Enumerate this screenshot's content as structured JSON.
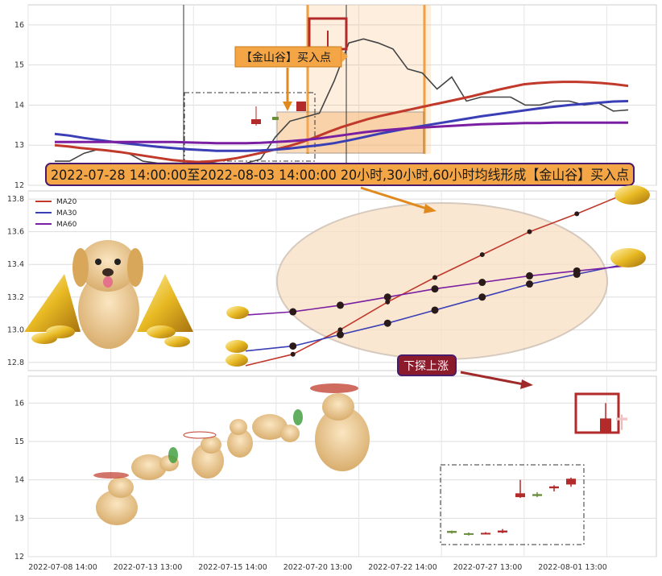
{
  "chart_data": [
    {
      "type": "line",
      "panel": "top",
      "ylim": [
        12,
        16.5
      ],
      "yticks": [
        "12",
        "13",
        "14",
        "15",
        "16"
      ],
      "grid": true,
      "series": [
        {
          "name": "",
          "color": "#444444",
          "values": [
            12.6,
            12.6,
            12.8,
            12.9,
            12.85,
            12.8,
            12.6,
            12.55,
            12.55,
            12.55,
            12.6,
            12.55,
            12.5,
            12.55,
            12.65,
            13.2,
            13.6,
            13.7,
            13.8,
            14.6,
            15.55,
            15.65,
            15.55,
            15.4,
            14.9,
            14.8,
            14.4,
            14.7,
            14.1,
            14.2,
            14.2,
            14.2,
            14.0,
            14.0,
            14.1,
            14.1,
            14.0,
            14.05,
            13.85,
            13.88
          ]
        },
        {
          "name": "",
          "color": "#c0392b",
          "values": [
            13.0,
            12.97,
            12.93,
            12.9,
            12.87,
            12.83,
            12.78,
            12.73,
            12.68,
            12.63,
            12.6,
            12.58,
            12.6,
            12.63,
            12.68,
            12.75,
            12.82,
            12.9,
            12.98,
            13.08,
            13.2,
            13.33,
            13.45,
            13.55,
            13.65,
            13.73,
            13.8,
            13.87,
            13.94,
            14.01,
            14.08,
            14.15,
            14.22,
            14.3,
            14.38,
            14.45,
            14.52,
            14.55,
            14.57,
            14.58,
            14.58,
            14.57,
            14.55,
            14.52,
            14.48
          ]
        },
        {
          "name": "",
          "color": "#3b3fb5",
          "values": [
            13.28,
            13.24,
            13.18,
            13.13,
            13.08,
            13.04,
            13.0,
            12.96,
            12.93,
            12.9,
            12.88,
            12.86,
            12.86,
            12.86,
            12.87,
            12.89,
            12.92,
            12.96,
            13.0,
            13.05,
            13.12,
            13.2,
            13.28,
            13.35,
            13.42,
            13.48,
            13.54,
            13.6,
            13.66,
            13.72,
            13.77,
            13.82,
            13.87,
            13.92,
            13.96,
            14.0,
            14.03,
            14.06,
            14.09,
            14.1
          ]
        },
        {
          "name": "",
          "color": "#7b1fa2",
          "values": [
            13.08,
            13.08,
            13.08,
            13.08,
            13.08,
            13.08,
            13.08,
            13.08,
            13.08,
            13.07,
            13.06,
            13.05,
            13.05,
            13.05,
            13.06,
            13.08,
            13.1,
            13.13,
            13.17,
            13.22,
            13.27,
            13.32,
            13.36,
            13.39,
            13.42,
            13.44,
            13.46,
            13.48,
            13.5,
            13.52,
            13.53,
            13.54,
            13.55,
            13.55,
            13.56,
            13.56,
            13.56,
            13.56,
            13.56,
            13.56
          ]
        }
      ]
    },
    {
      "type": "line",
      "panel": "middle",
      "ylim": [
        12.75,
        13.85
      ],
      "yticks": [
        "12.8",
        "13.0",
        "13.2",
        "13.4",
        "13.6",
        "13.8"
      ],
      "grid": true,
      "legend_position": "top-left",
      "series": [
        {
          "name": "MA20",
          "color": "#c0392b",
          "values": [
            12.78,
            12.85,
            13.0,
            13.17,
            13.32,
            13.46,
            13.6,
            13.71,
            13.83
          ]
        },
        {
          "name": "MA30",
          "color": "#3b3fb5",
          "values": [
            12.87,
            12.9,
            12.97,
            13.04,
            13.12,
            13.2,
            13.28,
            13.34,
            13.4
          ]
        },
        {
          "name": "MA60",
          "color": "#7b1fa2",
          "values": [
            13.09,
            13.11,
            13.15,
            13.2,
            13.25,
            13.29,
            13.33,
            13.36,
            13.39
          ]
        }
      ]
    },
    {
      "type": "candlestick",
      "panel": "bottom",
      "ylim": [
        12,
        16.7
      ],
      "yticks": [
        "12",
        "13",
        "14",
        "15",
        "16"
      ],
      "grid": true,
      "x_tick_labels": [
        "2022-07-08 14:00",
        "2022-07-13 13:00",
        "2022-07-15 14:00",
        "2022-07-20 13:00",
        "2022-07-22 14:00",
        "2022-07-27 13:00",
        "2022-08-01 13:00"
      ],
      "candles": [
        {
          "open": 12.62,
          "close": 12.67,
          "high": 12.68,
          "low": 12.6
        },
        {
          "open": 12.58,
          "close": 12.61,
          "high": 12.63,
          "low": 12.55
        },
        {
          "open": 12.6,
          "close": 12.62,
          "high": 12.64,
          "low": 12.58
        },
        {
          "open": 12.63,
          "close": 12.68,
          "high": 12.72,
          "low": 12.61
        },
        {
          "open": 13.55,
          "close": 13.65,
          "high": 14.0,
          "low": 13.53
        },
        {
          "open": 13.58,
          "close": 13.63,
          "high": 13.68,
          "low": 13.55
        },
        {
          "open": 13.78,
          "close": 13.83,
          "high": 13.86,
          "low": 13.7
        },
        {
          "open": 13.88,
          "close": 14.03,
          "high": 14.06,
          "low": 13.82
        },
        {
          "open": 15.25,
          "close": 15.6,
          "high": 16.0,
          "low": 15.2
        },
        {
          "open": 15.55,
          "close": 15.62,
          "high": 15.7,
          "low": 15.3
        }
      ]
    }
  ],
  "annotations": {
    "buy_point_label": "【金山谷】买入点",
    "banner_text": "2022-07-28 14:00:00至2022-08-03 14:00:00 20小时,30小时,60小时均线形成【金山谷】买入点",
    "dip_rise_label": "下探上涨"
  },
  "colors": {
    "highlight_band": "#f6b26b",
    "banner_bg": "#f4a546",
    "banner_border": "#4a1a6b",
    "tag_bg": "#8b1a2b",
    "candle_up": "#b22a2a",
    "candle_down": "#6b8e3c",
    "ellipse_fill": "#f9e0c4"
  },
  "icons": [
    "gold-ingot-icon",
    "gold-pyramid-icon",
    "puppy-mascot-icon",
    "flying-puppy-icon"
  ]
}
